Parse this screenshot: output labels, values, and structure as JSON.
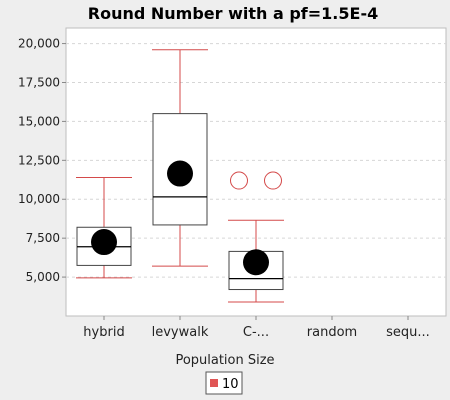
{
  "chart_data": {
    "type": "box",
    "title": "Round Number with a pf=1.5E-4",
    "xlabel": "Population Size",
    "ylabel": "",
    "categories": [
      "hybrid",
      "levywalk",
      "C-...",
      "random",
      "sequ..."
    ],
    "ylim": [
      2500,
      21000
    ],
    "yticks": [
      5000,
      7500,
      10000,
      12500,
      15000,
      17500,
      20000
    ],
    "ytick_labels": [
      "5,000",
      "7,500",
      "10,000",
      "12,500",
      "15,000",
      "17,500",
      "20,000"
    ],
    "grid": true,
    "legend": {
      "position": "bottom",
      "entries": [
        {
          "label": "10",
          "color": "#e05555"
        }
      ]
    },
    "series": [
      {
        "name": "10",
        "color": "#d44a4a",
        "boxes": [
          {
            "category": "hybrid",
            "whisker_low": 4950,
            "q1": 5750,
            "median": 6950,
            "q3": 8200,
            "whisker_high": 11400,
            "mean": 7250,
            "outliers": []
          },
          {
            "category": "levywalk",
            "whisker_low": 5700,
            "q1": 8350,
            "median": 10150,
            "q3": 15500,
            "whisker_high": 19600,
            "mean": 11650,
            "outliers": []
          },
          {
            "category": "C-...",
            "whisker_low": 3400,
            "q1": 4200,
            "median": 4900,
            "q3": 6650,
            "whisker_high": 8650,
            "mean": 5950,
            "outliers": [
              11200,
              11200
            ]
          }
        ]
      }
    ]
  }
}
